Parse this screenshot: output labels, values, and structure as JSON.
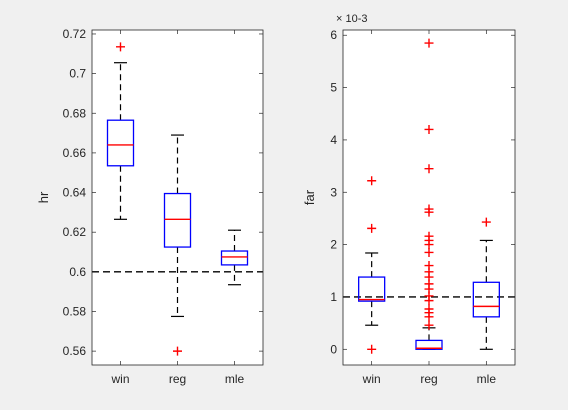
{
  "chart_data": [
    {
      "type": "box",
      "ylabel": "hr",
      "ylim": [
        0.553,
        0.722
      ],
      "yticks": [
        "0.56",
        "0.58",
        "0.6",
        "0.62",
        "0.64",
        "0.66",
        "0.68",
        "0.7",
        "0.72"
      ],
      "categories": [
        "win",
        "reg",
        "mle"
      ],
      "reference_line": 0.6,
      "boxes": [
        {
          "name": "win",
          "whisker_low": 0.6265,
          "q1": 0.6535,
          "median": 0.664,
          "q3": 0.6765,
          "whisker_high": 0.7055,
          "outliers": [
            0.7135
          ]
        },
        {
          "name": "reg",
          "whisker_low": 0.5775,
          "q1": 0.6125,
          "median": 0.6265,
          "q3": 0.6395,
          "whisker_high": 0.669,
          "outliers": [
            0.56
          ]
        },
        {
          "name": "mle",
          "whisker_low": 0.5935,
          "q1": 0.6035,
          "median": 0.6075,
          "q3": 0.6105,
          "whisker_high": 0.621,
          "outliers": []
        }
      ]
    },
    {
      "type": "box",
      "ylabel": "far",
      "yscale_label": "× 10-3",
      "ylim": [
        -0.3,
        6.1
      ],
      "yticks": [
        "0",
        "1",
        "2",
        "3",
        "4",
        "5",
        "6"
      ],
      "categories": [
        "win",
        "reg",
        "mle"
      ],
      "reference_line": 1,
      "boxes": [
        {
          "name": "win",
          "whisker_low": 0.46,
          "q1": 0.92,
          "median": 0.95,
          "q3": 1.38,
          "whisker_high": 1.84,
          "outliers": [
            0,
            2.31,
            3.22
          ]
        },
        {
          "name": "reg",
          "whisker_low": 0,
          "q1": 0,
          "median": 0.02,
          "q3": 0.17,
          "whisker_high": 0.41,
          "outliers": [
            0.46,
            0.62,
            0.7,
            0.77,
            0.93,
            1.02,
            1.15,
            1.25,
            1.38,
            1.48,
            1.6,
            1.85,
            2.0,
            2.08,
            2.16,
            2.62,
            2.68,
            3.45,
            4.2,
            5.85
          ]
        },
        {
          "name": "mle",
          "whisker_low": 0,
          "q1": 0.62,
          "median": 0.82,
          "q3": 1.28,
          "whisker_high": 2.08,
          "outliers": [
            2.43
          ]
        }
      ]
    }
  ],
  "colors": {
    "box": "#0000ff",
    "median": "#ff0000",
    "outlier": "#ff0000",
    "whisker": "#000000",
    "axes_bg": "#ffffff",
    "figure_bg": "#f0f0f0",
    "axis_line": "#262626"
  }
}
